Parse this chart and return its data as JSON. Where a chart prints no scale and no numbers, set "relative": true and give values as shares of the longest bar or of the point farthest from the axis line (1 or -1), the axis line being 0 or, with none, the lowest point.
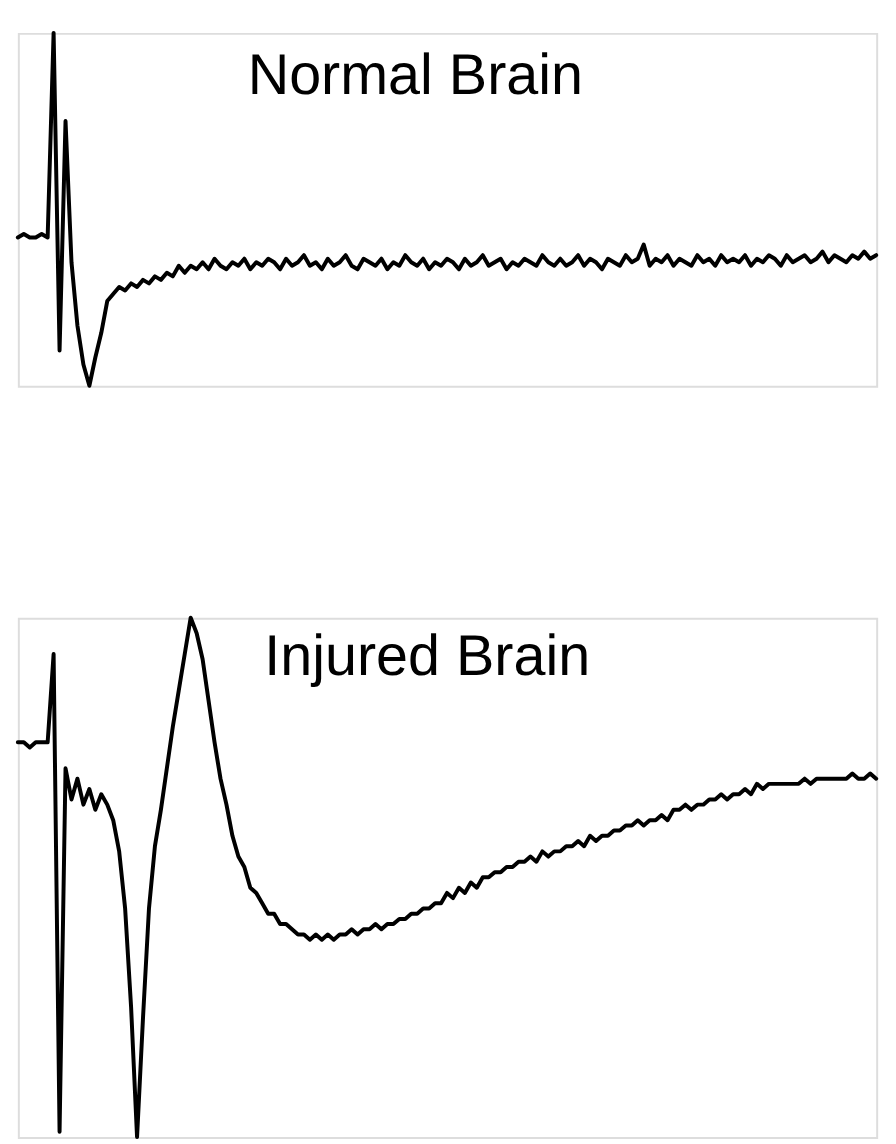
{
  "chart_data": [
    {
      "type": "line",
      "title": "Normal Brain",
      "relative": true,
      "categories": [
        null,
        null,
        null,
        null,
        null,
        null,
        null,
        null,
        null,
        null,
        null,
        null,
        null,
        null,
        null,
        null,
        null,
        null,
        null,
        null,
        null,
        null,
        null,
        null,
        null,
        null,
        null,
        null,
        null,
        null,
        null,
        null,
        null,
        null,
        null,
        null,
        null,
        null,
        null,
        null,
        null,
        null,
        null,
        null,
        null,
        null,
        null,
        null,
        null,
        null,
        null,
        null,
        null,
        null,
        null,
        null,
        null,
        null,
        null,
        null,
        null,
        null,
        null,
        null,
        null,
        null,
        null,
        null,
        null,
        null,
        null,
        null,
        null,
        null,
        null,
        null,
        null,
        null,
        null,
        null,
        null,
        null,
        null,
        null,
        null,
        null,
        null,
        null,
        null,
        null,
        null,
        null,
        null,
        null,
        null,
        null,
        null,
        null,
        null,
        null,
        null,
        null,
        null,
        null,
        null,
        null,
        null,
        null,
        null,
        null,
        null,
        null,
        null,
        null,
        null,
        null,
        null,
        null,
        null,
        null,
        null,
        null,
        null,
        null,
        null,
        null,
        null,
        null,
        null,
        null,
        null,
        null,
        null,
        null,
        null,
        null,
        null,
        null,
        null,
        null,
        null,
        null,
        null,
        null,
        null
      ],
      "series": [
        {
          "color": "#000000",
          "values": [
            0.42,
            0.43,
            0.42,
            0.42,
            0.43,
            0.42,
            1.0,
            0.1,
            0.75,
            0.35,
            0.17,
            0.06,
            0.0,
            0.08,
            0.15,
            0.24,
            0.26,
            0.28,
            0.27,
            0.29,
            0.28,
            0.3,
            0.29,
            0.31,
            0.3,
            0.32,
            0.31,
            0.34,
            0.32,
            0.34,
            0.33,
            0.35,
            0.33,
            0.36,
            0.34,
            0.33,
            0.35,
            0.34,
            0.36,
            0.33,
            0.35,
            0.34,
            0.36,
            0.35,
            0.33,
            0.36,
            0.34,
            0.35,
            0.37,
            0.34,
            0.35,
            0.33,
            0.36,
            0.34,
            0.35,
            0.37,
            0.34,
            0.33,
            0.36,
            0.35,
            0.34,
            0.36,
            0.33,
            0.35,
            0.34,
            0.37,
            0.35,
            0.34,
            0.36,
            0.33,
            0.35,
            0.34,
            0.36,
            0.35,
            0.33,
            0.36,
            0.34,
            0.35,
            0.37,
            0.34,
            0.35,
            0.36,
            0.33,
            0.35,
            0.34,
            0.36,
            0.35,
            0.34,
            0.37,
            0.35,
            0.34,
            0.36,
            0.34,
            0.35,
            0.37,
            0.34,
            0.36,
            0.35,
            0.33,
            0.36,
            0.35,
            0.34,
            0.37,
            0.35,
            0.36,
            0.4,
            0.34,
            0.36,
            0.35,
            0.37,
            0.34,
            0.36,
            0.35,
            0.34,
            0.37,
            0.35,
            0.36,
            0.34,
            0.37,
            0.35,
            0.36,
            0.35,
            0.37,
            0.34,
            0.36,
            0.35,
            0.37,
            0.36,
            0.34,
            0.37,
            0.35,
            0.36,
            0.37,
            0.35,
            0.36,
            0.38,
            0.35,
            0.37,
            0.36,
            0.35,
            0.37,
            0.36,
            0.38,
            0.36,
            0.37
          ]
        }
      ]
    },
    {
      "type": "line",
      "title": "Injured Brain",
      "relative": true,
      "categories": [
        null,
        null,
        null,
        null,
        null,
        null,
        null,
        null,
        null,
        null,
        null,
        null,
        null,
        null,
        null,
        null,
        null,
        null,
        null,
        null,
        null,
        null,
        null,
        null,
        null,
        null,
        null,
        null,
        null,
        null,
        null,
        null,
        null,
        null,
        null,
        null,
        null,
        null,
        null,
        null,
        null,
        null,
        null,
        null,
        null,
        null,
        null,
        null,
        null,
        null,
        null,
        null,
        null,
        null,
        null,
        null,
        null,
        null,
        null,
        null,
        null,
        null,
        null,
        null,
        null,
        null,
        null,
        null,
        null,
        null,
        null,
        null,
        null,
        null,
        null,
        null,
        null,
        null,
        null,
        null,
        null,
        null,
        null,
        null,
        null,
        null,
        null,
        null,
        null,
        null,
        null,
        null,
        null,
        null,
        null,
        null,
        null,
        null,
        null,
        null,
        null,
        null,
        null,
        null,
        null,
        null,
        null,
        null,
        null,
        null,
        null,
        null,
        null,
        null,
        null,
        null,
        null,
        null,
        null,
        null,
        null,
        null,
        null,
        null,
        null,
        null,
        null,
        null,
        null,
        null,
        null,
        null,
        null,
        null,
        null,
        null,
        null,
        null,
        null,
        null,
        null,
        null,
        null,
        null,
        null
      ],
      "series": [
        {
          "color": "#000000",
          "values": [
            0.76,
            0.76,
            0.75,
            0.76,
            0.76,
            0.76,
            0.93,
            0.01,
            0.71,
            0.65,
            0.69,
            0.64,
            0.67,
            0.63,
            0.66,
            0.64,
            0.61,
            0.55,
            0.44,
            0.25,
            0.0,
            0.23,
            0.44,
            0.56,
            0.63,
            0.71,
            0.79,
            0.86,
            0.93,
            1.0,
            0.97,
            0.92,
            0.84,
            0.76,
            0.69,
            0.64,
            0.58,
            0.54,
            0.52,
            0.48,
            0.47,
            0.45,
            0.43,
            0.43,
            0.41,
            0.41,
            0.4,
            0.39,
            0.39,
            0.38,
            0.39,
            0.38,
            0.39,
            0.38,
            0.39,
            0.39,
            0.4,
            0.39,
            0.4,
            0.4,
            0.41,
            0.4,
            0.41,
            0.41,
            0.42,
            0.42,
            0.43,
            0.43,
            0.44,
            0.44,
            0.45,
            0.45,
            0.47,
            0.46,
            0.48,
            0.47,
            0.49,
            0.48,
            0.5,
            0.5,
            0.51,
            0.51,
            0.52,
            0.52,
            0.53,
            0.53,
            0.54,
            0.53,
            0.55,
            0.54,
            0.55,
            0.55,
            0.56,
            0.56,
            0.57,
            0.56,
            0.58,
            0.57,
            0.58,
            0.58,
            0.59,
            0.59,
            0.6,
            0.6,
            0.61,
            0.6,
            0.61,
            0.61,
            0.62,
            0.61,
            0.63,
            0.63,
            0.64,
            0.63,
            0.64,
            0.64,
            0.65,
            0.65,
            0.66,
            0.65,
            0.66,
            0.66,
            0.67,
            0.66,
            0.68,
            0.67,
            0.68,
            0.68,
            0.68,
            0.68,
            0.68,
            0.68,
            0.69,
            0.68,
            0.69,
            0.69,
            0.69,
            0.69,
            0.69,
            0.69,
            0.7,
            0.69,
            0.69,
            0.7,
            0.69
          ]
        }
      ]
    }
  ]
}
